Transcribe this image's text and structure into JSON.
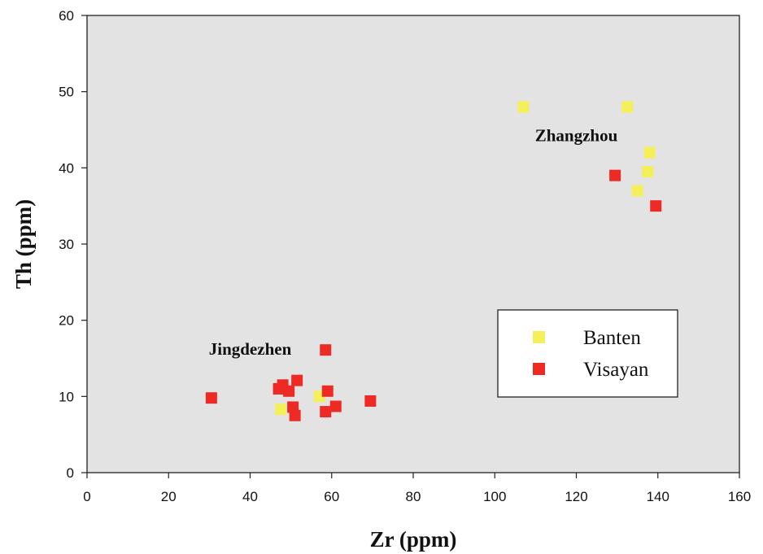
{
  "chart_data": {
    "type": "scatter",
    "xlabel": "Zr (ppm)",
    "ylabel": "Th (ppm)",
    "xlim": [
      0,
      160
    ],
    "ylim": [
      0,
      60
    ],
    "x_ticks": [
      0,
      20,
      40,
      60,
      80,
      100,
      120,
      140,
      160
    ],
    "y_ticks": [
      0,
      10,
      20,
      30,
      40,
      50,
      60
    ],
    "grid": false,
    "plot_background": "#e3e3e3",
    "legend_position": "lower-right",
    "annotations": [
      {
        "text": "Jingdezhen",
        "x": 40,
        "y": 15.5
      },
      {
        "text": "Zhangzhou",
        "x": 120,
        "y": 43.5
      }
    ],
    "series": [
      {
        "name": "Banten",
        "color": "#f5ef5a",
        "marker": "square",
        "points": [
          {
            "x": 107,
            "y": 48
          },
          {
            "x": 132.5,
            "y": 48
          },
          {
            "x": 138,
            "y": 42
          },
          {
            "x": 137.5,
            "y": 39.5
          },
          {
            "x": 135,
            "y": 37
          },
          {
            "x": 47.5,
            "y": 8.3
          },
          {
            "x": 57,
            "y": 10
          }
        ]
      },
      {
        "name": "Visayan",
        "color": "#ee2a24",
        "marker": "square",
        "points": [
          {
            "x": 30.5,
            "y": 9.8
          },
          {
            "x": 47,
            "y": 11
          },
          {
            "x": 48,
            "y": 11.5
          },
          {
            "x": 49.5,
            "y": 10.7
          },
          {
            "x": 51.5,
            "y": 12.1
          },
          {
            "x": 50.5,
            "y": 8.6
          },
          {
            "x": 51,
            "y": 7.5
          },
          {
            "x": 58.5,
            "y": 16.1
          },
          {
            "x": 59,
            "y": 10.7
          },
          {
            "x": 58.5,
            "y": 8
          },
          {
            "x": 61,
            "y": 8.7
          },
          {
            "x": 69.5,
            "y": 9.4
          },
          {
            "x": 129.5,
            "y": 39
          },
          {
            "x": 139.5,
            "y": 35
          }
        ]
      }
    ]
  }
}
